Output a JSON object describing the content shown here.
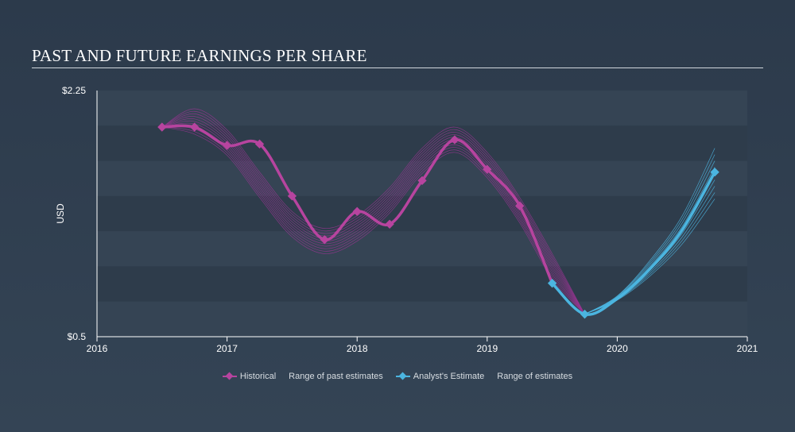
{
  "title": "PAST AND FUTURE EARNINGS PER SHARE",
  "colors": {
    "historical": "#9b3493",
    "historical_marker": "#b7449f",
    "estimate": "#4bb5e0",
    "band_odd": "#2f3d4d",
    "band_even": "#34424f",
    "axis": "#ffffff",
    "text": "#ffffff"
  },
  "legend": {
    "historical": "Historical",
    "range_past": "Range of past estimates",
    "analyst": "Analyst's Estimate",
    "range_future": "Range of estimates"
  },
  "chart_data": {
    "type": "line",
    "title": "PAST AND FUTURE EARNINGS PER SHARE",
    "xlabel": "",
    "ylabel": "USD",
    "xlim": [
      2016,
      2021
    ],
    "ylim": [
      0.5,
      2.25
    ],
    "x_ticks": [
      "2016",
      "2017",
      "2018",
      "2019",
      "2020",
      "2021"
    ],
    "y_ticks": [
      "$2.25",
      "$0.5"
    ],
    "grid": "horizontal bands",
    "legend_position": "bottom-center",
    "series": [
      {
        "name": "Historical",
        "x": [
          2016.5,
          2016.75,
          2017.0,
          2017.25,
          2017.5,
          2017.75,
          2018.0,
          2018.25,
          2018.5,
          2018.75,
          2019.0,
          2019.25,
          2019.5
        ],
        "y": [
          1.99,
          1.99,
          1.86,
          1.87,
          1.5,
          1.19,
          1.39,
          1.3,
          1.61,
          1.9,
          1.69,
          1.43,
          0.88
        ]
      },
      {
        "name": "Analyst's Estimate",
        "x": [
          2019.5,
          2019.75,
          2020.0,
          2020.25,
          2020.5,
          2020.75
        ],
        "y": [
          0.88,
          0.66,
          0.77,
          0.98,
          1.26,
          1.67
        ]
      }
    ],
    "range_past_center": {
      "x": [
        2016.5,
        2016.75,
        2017.0,
        2017.25,
        2017.5,
        2017.75,
        2018.0,
        2018.25,
        2018.5,
        2018.75,
        2019.0,
        2019.25,
        2019.5,
        2019.75
      ],
      "y": [
        1.99,
        2.03,
        1.88,
        1.58,
        1.3,
        1.18,
        1.27,
        1.47,
        1.75,
        1.9,
        1.72,
        1.4,
        1.0,
        0.66
      ]
    },
    "range_future_low": [
      0.66,
      0.76,
      0.93,
      1.16,
      1.48
    ],
    "range_future_high": [
      0.66,
      0.79,
      1.04,
      1.36,
      1.84
    ],
    "range_future_x": [
      2019.75,
      2020.0,
      2020.25,
      2020.5,
      2020.75
    ]
  }
}
